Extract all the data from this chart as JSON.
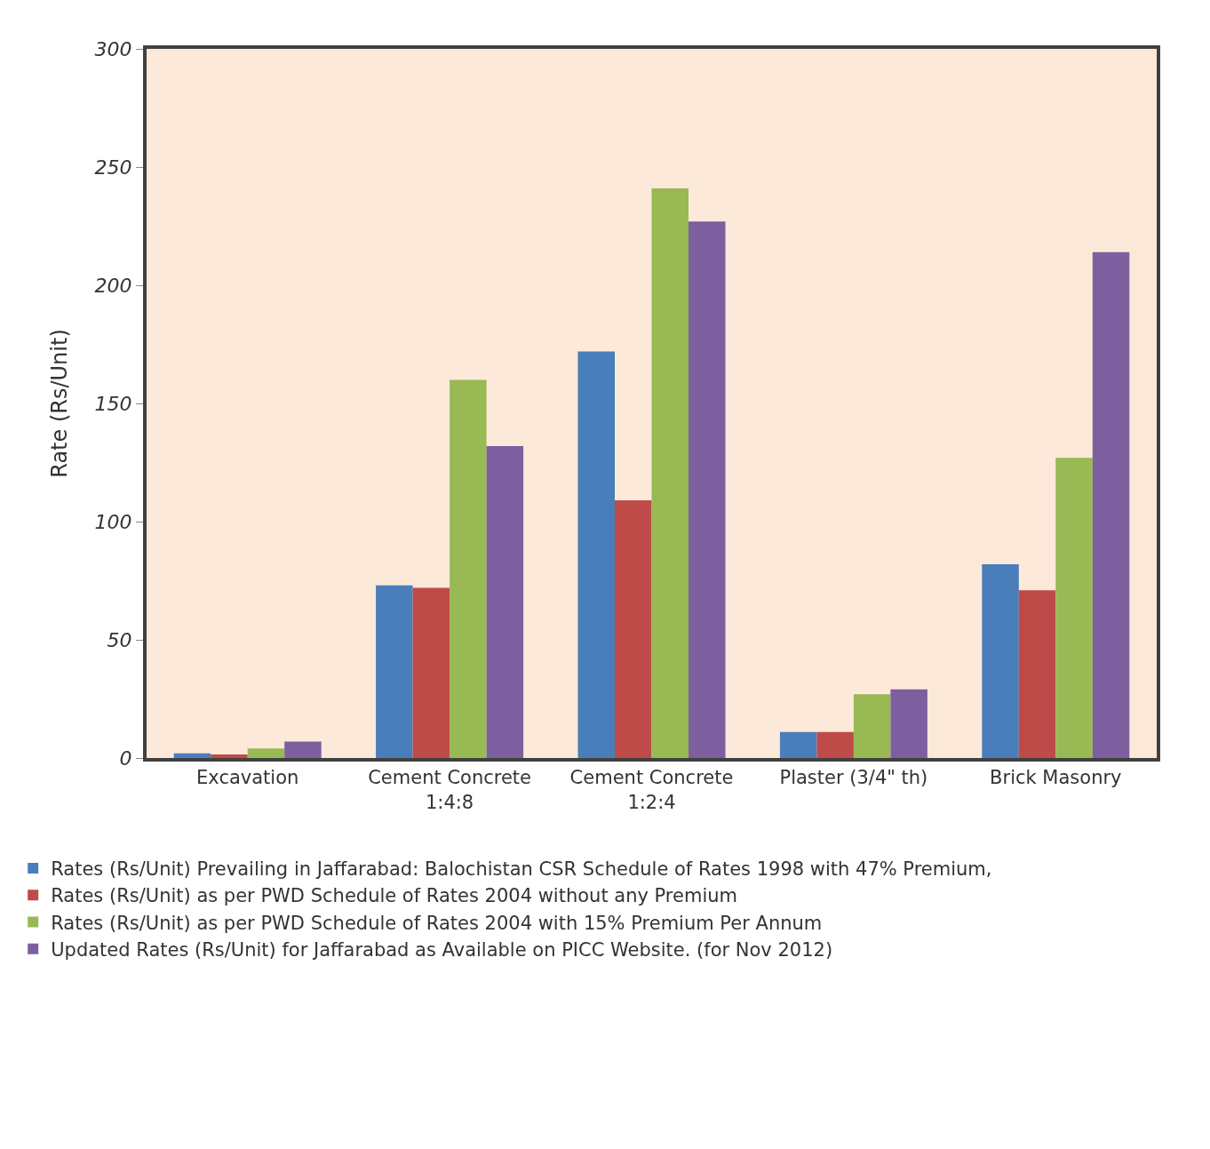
{
  "chart_data": {
    "type": "bar",
    "ylabel": "Rate (Rs/Unit)",
    "categories": [
      "Excavation",
      "Cement Concrete\n1:4:8",
      "Cement Concrete\n1:2:4",
      "Plaster (3/4\" th)",
      "Brick Masonry"
    ],
    "series": [
      {
        "name": "Rates (Rs/Unit) Prevailing in Jaffarabad: Balochistan CSR Schedule of Rates 1998 with 47% Premium,",
        "color": "#4a7ebb",
        "values": [
          2,
          73,
          172,
          11,
          82
        ]
      },
      {
        "name": "Rates (Rs/Unit) as per PWD Schedule of Rates 2004 without any Premium",
        "color": "#be4b48",
        "values": [
          1.5,
          72,
          109,
          11,
          71
        ]
      },
      {
        "name": "Rates (Rs/Unit) as per PWD Schedule of Rates 2004 with 15% Premium Per Annum",
        "color": "#98b954",
        "values": [
          4,
          160,
          241,
          27,
          127
        ]
      },
      {
        "name": "Updated Rates (Rs/Unit) for Jaffarabad as Available on PICC Website. (for Nov 2012)",
        "color": "#7d5fa0",
        "values": [
          7,
          132,
          227,
          29,
          214
        ]
      }
    ],
    "ylim": [
      0,
      300
    ],
    "yticks": [
      0,
      50,
      100,
      150,
      200,
      250,
      300
    ],
    "grid": false,
    "legend": "bottom"
  }
}
